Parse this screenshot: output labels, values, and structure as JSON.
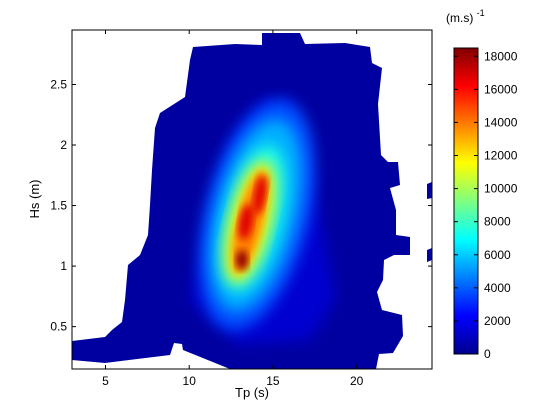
{
  "chart_data": {
    "type": "heatmap",
    "title": "",
    "xlabel": "Tp (s)",
    "ylabel": "Hs (m)",
    "xlim": [
      3,
      24.5
    ],
    "ylim": [
      0.15,
      2.95
    ],
    "xticks": [
      5,
      10,
      15,
      20
    ],
    "yticks": [
      0.5,
      1,
      1.5,
      2,
      2.5
    ],
    "colorbar": {
      "label": "(m.s)",
      "label_exponent": "-1",
      "range": [
        0,
        18500
      ],
      "ticks": [
        0,
        2000,
        4000,
        6000,
        8000,
        10000,
        12000,
        14000,
        16000,
        18000
      ],
      "colormap": "jet"
    },
    "grid": false,
    "peak": {
      "Tp": 13.2,
      "Hs": 1.08,
      "value": 18500
    },
    "colors": {
      "low": "#00008f",
      "mid": "#00ffff",
      "high": "#ff4000",
      "max": "#800000"
    }
  }
}
